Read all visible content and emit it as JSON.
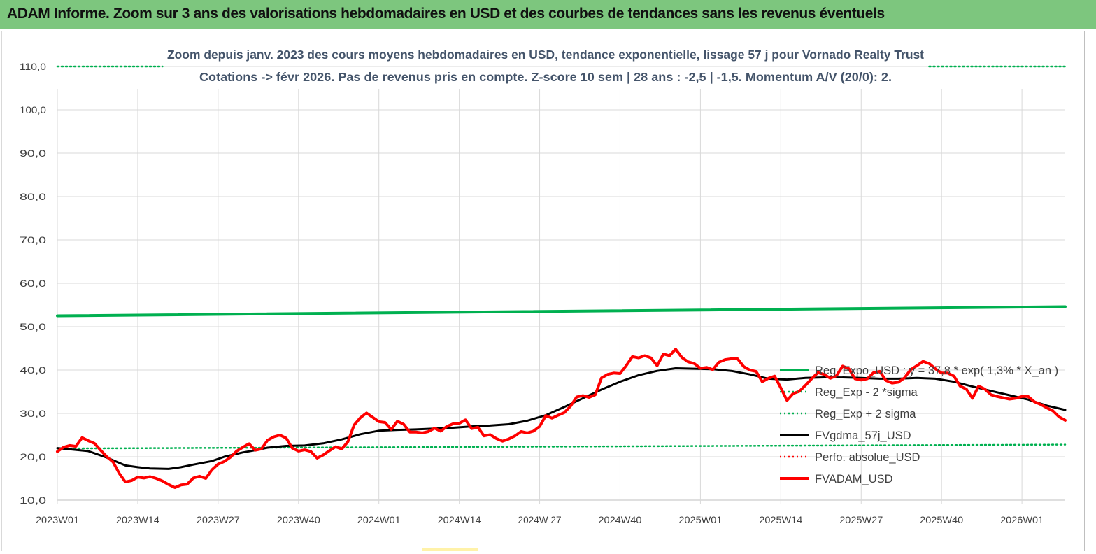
{
  "banner": {
    "title": "ADAM Informe. Zoom sur 3 ans des valorisations hebdomadaires en USD et des courbes de tendances sans les revenus éventuels",
    "background": "#7dc67e"
  },
  "chart_data": {
    "type": "line",
    "title": "Zoom depuis janv. 2023 des cours moyens hebdomadaires en USD, tendance exponentielle, lissage 57 j pour Vornado Realty Trust",
    "subtitle": "Cotations -> févr 2026.  Pas de revenus pris en compte. Z-score 10 sem | 28 ans : -2,5 | -1,5. Momentum A/V (20/0): 2.",
    "xlabel": "",
    "ylabel": "",
    "ylim": [
      10,
      110
    ],
    "yticks": [
      "10,0",
      "20,0",
      "30,0",
      "40,0",
      "50,0",
      "60,0",
      "70,0",
      "80,0",
      "90,0",
      "100,0",
      "110,0"
    ],
    "xlim": [
      0,
      163
    ],
    "xticks": [
      {
        "x": 0,
        "label": "2023W01"
      },
      {
        "x": 13,
        "label": "2023W14"
      },
      {
        "x": 26,
        "label": "2023W27"
      },
      {
        "x": 39,
        "label": "2023W40"
      },
      {
        "x": 52,
        "label": "2024W01"
      },
      {
        "x": 65,
        "label": "2024W14"
      },
      {
        "x": 78,
        "label": "2024W 27"
      },
      {
        "x": 91,
        "label": "2024W40"
      },
      {
        "x": 104,
        "label": "2025W01"
      },
      {
        "x": 117,
        "label": "2025W14"
      },
      {
        "x": 130,
        "label": "2025W27"
      },
      {
        "x": 143,
        "label": "2025W40"
      },
      {
        "x": 156,
        "label": "2026W01"
      }
    ],
    "grid": "horizontal",
    "legend_position": "right",
    "series": [
      {
        "name": "Reg_Expo_USD : y = 37,8 * exp( 1,3% *  X_an )",
        "color": "#00b050",
        "style": "solid-thick",
        "x": [
          0,
          163
        ],
        "y": [
          52.5,
          54.6
        ]
      },
      {
        "name": "Reg_Exp - 2 *sigma",
        "color": "#00b050",
        "style": "dotted",
        "x": [
          0,
          163
        ],
        "y": [
          21.9,
          22.8
        ]
      },
      {
        "name": "Reg_Exp + 2 sigma",
        "color": "#00b050",
        "style": "dotted",
        "x": [
          0,
          17,
          141,
          163
        ],
        "y": [
          110,
          110,
          110,
          110
        ],
        "segments": [
          [
            0,
            1
          ],
          [
            2,
            3
          ]
        ]
      },
      {
        "name": "FVgdma_57j_USD",
        "color": "#000000",
        "style": "solid",
        "x": [
          0,
          5,
          8,
          11,
          13,
          15,
          18,
          20,
          22,
          25,
          27,
          30,
          32,
          34,
          37,
          40,
          43,
          46,
          49,
          52,
          55,
          58,
          61,
          64,
          67,
          70,
          73,
          76,
          79,
          82,
          85,
          88,
          91,
          94,
          97,
          100,
          103,
          106,
          109,
          112,
          115,
          118,
          121,
          124,
          127,
          130,
          133,
          136,
          139,
          142,
          145,
          148,
          151,
          154,
          157,
          160,
          163
        ],
        "y": [
          22.0,
          21.3,
          19.8,
          18.0,
          17.6,
          17.3,
          17.2,
          17.6,
          18.2,
          19.0,
          20.0,
          21.0,
          21.5,
          22.1,
          22.5,
          22.6,
          23.1,
          24.0,
          25.2,
          26.0,
          26.2,
          26.3,
          26.5,
          26.7,
          27.0,
          27.2,
          27.5,
          28.3,
          29.6,
          31.5,
          33.5,
          35.5,
          37.3,
          38.8,
          39.8,
          40.4,
          40.3,
          40.2,
          39.8,
          39.0,
          38.0,
          37.8,
          38.2,
          38.3,
          38.3,
          38.2,
          38.0,
          38.0,
          38.2,
          38.0,
          37.3,
          36.2,
          35.2,
          34.2,
          33.2,
          31.8,
          30.8
        ]
      },
      {
        "name": "Perfo. absolue_USD",
        "color": "#ff0000",
        "style": "dotted",
        "x": [],
        "y": []
      },
      {
        "name": "FVADAM_USD",
        "color": "#ff0000",
        "style": "solid-thick",
        "x": [
          0,
          1,
          2,
          3,
          4,
          5,
          6,
          7,
          8,
          9,
          10,
          11,
          12,
          13,
          14,
          15,
          16,
          17,
          18,
          19,
          20,
          21,
          22,
          23,
          24,
          25,
          26,
          27,
          28,
          29,
          30,
          31,
          32,
          33,
          34,
          35,
          36,
          37,
          38,
          39,
          40,
          41,
          42,
          43,
          44,
          45,
          46,
          47,
          48,
          49,
          50,
          51,
          52,
          53,
          54,
          55,
          56,
          57,
          58,
          59,
          60,
          61,
          62,
          63,
          64,
          65,
          66,
          67,
          68,
          69,
          70,
          71,
          72,
          73,
          74,
          75,
          76,
          77,
          78,
          79,
          80,
          81,
          82,
          83,
          84,
          85,
          86,
          87,
          88,
          89,
          90,
          91,
          92,
          93,
          94,
          95,
          96,
          97,
          98,
          99,
          100,
          101,
          102,
          103,
          104,
          105,
          106,
          107,
          108,
          109,
          110,
          111,
          112,
          113,
          114,
          115,
          116,
          117,
          118,
          119,
          120,
          121,
          122,
          123,
          124,
          125,
          126,
          127,
          128,
          129,
          130,
          131,
          132,
          133,
          134,
          135,
          136,
          137,
          138,
          139,
          140,
          141,
          142,
          143,
          144,
          145,
          146,
          147,
          148,
          149,
          150,
          151,
          152,
          153,
          154,
          155,
          156,
          157,
          158,
          159,
          160,
          161,
          162,
          163
        ],
        "y": [
          21.2,
          22.2,
          22.6,
          22.4,
          24.4,
          23.7,
          23.1,
          21.5,
          20.0,
          18.8,
          16.2,
          14.2,
          14.5,
          15.3,
          15.1,
          15.4,
          15.0,
          14.4,
          13.6,
          12.9,
          13.5,
          13.7,
          15.1,
          15.5,
          15.0,
          17.0,
          18.3,
          18.9,
          19.9,
          21.3,
          22.2,
          23.0,
          21.5,
          21.8,
          23.8,
          24.6,
          25.0,
          24.3,
          22.0,
          21.3,
          21.6,
          21.2,
          19.7,
          20.4,
          21.4,
          22.3,
          21.8,
          23.5,
          27.3,
          29.0,
          30.1,
          29.1,
          28.1,
          27.9,
          26.3,
          28.2,
          27.5,
          25.7,
          25.7,
          25.5,
          25.8,
          26.6,
          25.9,
          27.0,
          27.6,
          27.7,
          28.5,
          26.5,
          26.8,
          24.8,
          25.1,
          24.2,
          23.6,
          24.1,
          24.8,
          25.8,
          25.5,
          25.9,
          27.0,
          29.5,
          28.9,
          29.6,
          30.2,
          31.7,
          33.8,
          34.1,
          33.7,
          34.3,
          38.2,
          39.0,
          39.3,
          39.2,
          41.0,
          43.1,
          42.8,
          43.3,
          42.8,
          41.0,
          43.7,
          43.3,
          44.8,
          42.9,
          41.9,
          41.5,
          40.4,
          40.6,
          40.1,
          41.8,
          42.4,
          42.6,
          42.6,
          40.8,
          40.0,
          39.7,
          37.3,
          38.1,
          38.6,
          35.9,
          33.0,
          34.6,
          35.1,
          36.5,
          38.0,
          39.4,
          39.0,
          38.1,
          38.7,
          40.9,
          40.3,
          38.0,
          37.7,
          38.0,
          39.4,
          39.7,
          37.6,
          37.0,
          37.2,
          38.2,
          40.1,
          41.0,
          42.0,
          41.5,
          40.3,
          39.3,
          39.3,
          38.6,
          36.3,
          35.6,
          33.5,
          36.3,
          35.6,
          34.3,
          33.9,
          33.6,
          33.3,
          33.5,
          33.9,
          33.9,
          32.7,
          32.1,
          31.3,
          30.6,
          29.2,
          28.4
        ]
      }
    ]
  }
}
